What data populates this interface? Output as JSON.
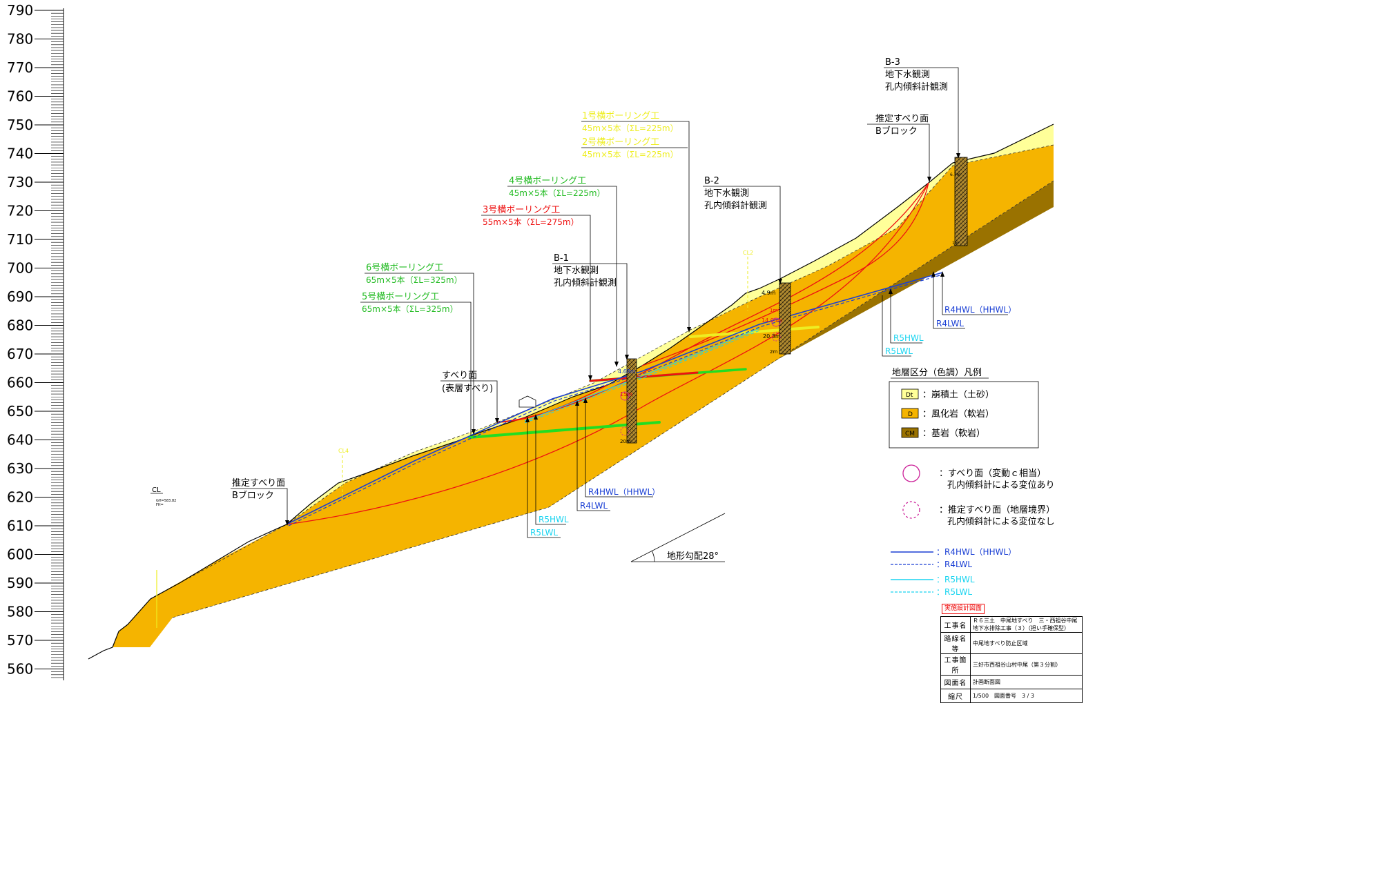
{
  "elevation_axis": {
    "ticks": [
      "790",
      "780",
      "770",
      "760",
      "750",
      "740",
      "730",
      "720",
      "710",
      "700",
      "690",
      "680",
      "670",
      "660",
      "650",
      "640",
      "630",
      "620",
      "610",
      "600",
      "590",
      "580",
      "570",
      "560"
    ]
  },
  "labels": {
    "cl": "CL",
    "cl_small_1": "GH=583.82",
    "cl_small_2": "FH=",
    "cl2": "CL2",
    "cl4": "CL4",
    "slope": "地形勾配28°"
  },
  "callouts": {
    "b3": [
      "B-3",
      "地下水観測",
      "孔内傾斜計観測"
    ],
    "b2": [
      "B-2",
      "地下水観測",
      "孔内傾斜計観測"
    ],
    "b1": [
      "B-1",
      "地下水観測",
      "孔内傾斜計観測"
    ],
    "slip_top": [
      "推定すべり面",
      "Bブロック"
    ],
    "slip_bottom": [
      "推定すべり面",
      "Bブロック"
    ],
    "slip_shallow": [
      "すべり面",
      "(表層すべり)"
    ],
    "drain12": [
      "1号横ボーリング工",
      "45m×5本（ΣL=225m）",
      "2号横ボーリング工",
      "45m×5本（ΣL=225m）"
    ],
    "drain4": [
      "4号横ボーリング工",
      "45m×5本（ΣL=225m）"
    ],
    "drain3": [
      "3号横ボーリング工",
      "55m×5本（ΣL=275m）"
    ],
    "drain65": [
      "6号横ボーリング工",
      "65m×5本（ΣL=325m）",
      "5号横ボーリング工",
      "65m×5本（ΣL=325m）"
    ]
  },
  "water_callouts": {
    "right": [
      "R4HWL（HHWL）",
      "R4LWL",
      "R5HWL",
      "R5LWL"
    ],
    "mid": [
      "R4HWL（HHWL）",
      "R4LWL",
      "R5HWL",
      "R5LWL"
    ]
  },
  "borehole_marks": {
    "b1": [
      "4.68m",
      "15m",
      "20m"
    ],
    "b2": [
      "4.9m",
      "1m",
      "14.05m",
      "20.3m",
      "2m"
    ],
    "b3": [
      "6.7m",
      "1m"
    ]
  },
  "legend": {
    "title": "地層区分（色調）凡例",
    "strata": [
      {
        "code": "Dt",
        "label": "：崩積土（土砂）",
        "color": "#ffff99"
      },
      {
        "code": "D",
        "label": "：風化岩（軟岩）",
        "color": "#f5b400"
      },
      {
        "code": "CM",
        "label": "：基岩（軟岩）",
        "color": "#9a7200"
      }
    ],
    "slip_solid": [
      "：すべり面（変動ｃ相当）",
      "孔内傾斜計による変位あり"
    ],
    "slip_dashed": [
      "：推定すべり面（地層境界）",
      "孔内傾斜計による変位なし"
    ],
    "water": [
      {
        "label": "：R4HWL（HHWL）",
        "color": "#1a3fd4"
      },
      {
        "label": "：R4LWL",
        "color": "#1a3fd4"
      },
      {
        "label": "：R5HWL",
        "color": "#19d4f0"
      },
      {
        "label": "：R5LWL",
        "color": "#19d4f0"
      }
    ]
  },
  "title_block": {
    "stamp": "実施設計図面",
    "rows": [
      {
        "key": "工事名",
        "value": "Ｒ６三土　中尾地すべり　三・西祖谷中尾　地下水排除工事（３）（担い手確保型）"
      },
      {
        "key": "路線名等",
        "value": "中尾地すべり防止区域"
      },
      {
        "key": "工事箇所",
        "value": "三好市西祖谷山村中尾（第３分割）"
      },
      {
        "key": "図面名",
        "value": "計画断面図"
      },
      {
        "key": "縮尺",
        "value": "1/500　図面番号　3 / 3"
      }
    ]
  },
  "colors": {
    "dt": "#ffff99",
    "d": "#f5b400",
    "cm": "#9a7200",
    "green": "#22dd22",
    "red": "#ee1111",
    "yellow": "#eeee22",
    "blue": "#1a3fd4",
    "cyan": "#19d4f0"
  }
}
